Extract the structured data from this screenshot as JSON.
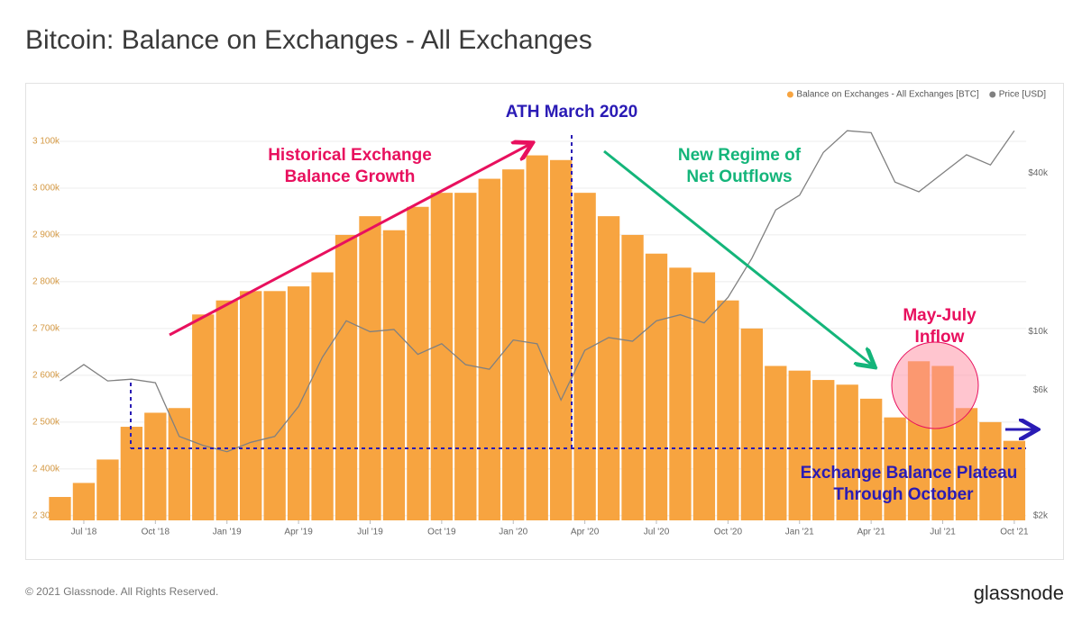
{
  "chart_data": {
    "type": "bar",
    "title": "Bitcoin: Balance on Exchanges - All Exchanges",
    "x": [
      "2018-06",
      "2018-07",
      "2018-08",
      "2018-09",
      "2018-10",
      "2018-11",
      "2018-12",
      "2019-01",
      "2019-02",
      "2019-03",
      "2019-04",
      "2019-05",
      "2019-06",
      "2019-07",
      "2019-08",
      "2019-09",
      "2019-10",
      "2019-11",
      "2019-12",
      "2020-01",
      "2020-02",
      "2020-03",
      "2020-04",
      "2020-05",
      "2020-06",
      "2020-07",
      "2020-08",
      "2020-09",
      "2020-10",
      "2020-11",
      "2020-12",
      "2021-01",
      "2021-02",
      "2021-03",
      "2021-04",
      "2021-05",
      "2021-06",
      "2021-07",
      "2021-08",
      "2021-09",
      "2021-10"
    ],
    "series": [
      {
        "name": "Balance on Exchanges - All Exchanges [BTC]",
        "color": "#f7a440",
        "values": [
          2340,
          2370,
          2420,
          2490,
          2520,
          2530,
          2730,
          2760,
          2780,
          2780,
          2790,
          2820,
          2900,
          2940,
          2910,
          2960,
          2990,
          2990,
          3020,
          3040,
          3070,
          3060,
          2990,
          2940,
          2900,
          2860,
          2830,
          2820,
          2760,
          2700,
          2620,
          2610,
          2590,
          2580,
          2550,
          2510,
          2630,
          2620,
          2530,
          2500,
          2460
        ]
      },
      {
        "name": "Price [USD]",
        "color": "#808080",
        "axis": "y2",
        "values": [
          6500,
          7500,
          6500,
          6600,
          6400,
          4000,
          3700,
          3500,
          3800,
          4000,
          5200,
          8000,
          11000,
          10000,
          10200,
          8200,
          9000,
          7500,
          7200,
          9300,
          9000,
          5500,
          8500,
          9500,
          9200,
          11000,
          11600,
          10800,
          13500,
          19000,
          29000,
          33000,
          48000,
          58000,
          57000,
          37000,
          34000,
          40000,
          47000,
          43000,
          58000
        ]
      }
    ],
    "ylim": [
      2290,
      3200
    ],
    "yticks": [
      {
        "value": 2300,
        "label": "2 300k"
      },
      {
        "value": 2400,
        "label": "2 400k"
      },
      {
        "value": 2500,
        "label": "2 500k"
      },
      {
        "value": 2600,
        "label": "2 600k"
      },
      {
        "value": 2700,
        "label": "2 700k"
      },
      {
        "value": 2800,
        "label": "2 800k"
      },
      {
        "value": 2900,
        "label": "2 900k"
      },
      {
        "value": 3000,
        "label": "3 000k"
      },
      {
        "value": 3100,
        "label": "3 100k"
      }
    ],
    "y2lim": [
      1920,
      79600
    ],
    "y2log": true,
    "y2ticks": [
      {
        "value": 2000,
        "label": "$2k"
      },
      {
        "value": 6000,
        "label": "$6k"
      },
      {
        "value": 10000,
        "label": "$10k"
      },
      {
        "value": 40000,
        "label": "$40k"
      }
    ],
    "xticks": [
      {
        "value": "2018-07",
        "label": "Jul '18"
      },
      {
        "value": "2018-10",
        "label": "Oct '18"
      },
      {
        "value": "2019-01",
        "label": "Jan '19"
      },
      {
        "value": "2019-04",
        "label": "Apr '19"
      },
      {
        "value": "2019-07",
        "label": "Jul '19"
      },
      {
        "value": "2019-10",
        "label": "Oct '19"
      },
      {
        "value": "2020-01",
        "label": "Jan '20"
      },
      {
        "value": "2020-04",
        "label": "Apr '20"
      },
      {
        "value": "2020-07",
        "label": "Jul '20"
      },
      {
        "value": "2020-10",
        "label": "Oct '20"
      },
      {
        "value": "2021-01",
        "label": "Jan '21"
      },
      {
        "value": "2021-04",
        "label": "Apr '21"
      },
      {
        "value": "2021-07",
        "label": "Jul '21"
      },
      {
        "value": "2021-10",
        "label": "Oct '21"
      }
    ],
    "grid": true,
    "legend": "top-right",
    "annotations": [
      {
        "lines": [
          "ATH March 2020"
        ],
        "color": "#2a1bb5"
      },
      {
        "lines": [
          "Historical Exchange",
          "Balance Growth"
        ],
        "color": "#e8105e"
      },
      {
        "lines": [
          "New Regime of",
          "Net Outflows"
        ],
        "color": "#14b57a"
      },
      {
        "lines": [
          "May-July",
          "Inflow"
        ],
        "color": "#e8105e"
      },
      {
        "lines": [
          "Exchange Balance Plateau",
          "Through October"
        ],
        "color": "#2a1bb5"
      }
    ]
  },
  "footer": {
    "copyright": "© 2021 Glassnode. All Rights Reserved.",
    "brand": "glassnode"
  }
}
